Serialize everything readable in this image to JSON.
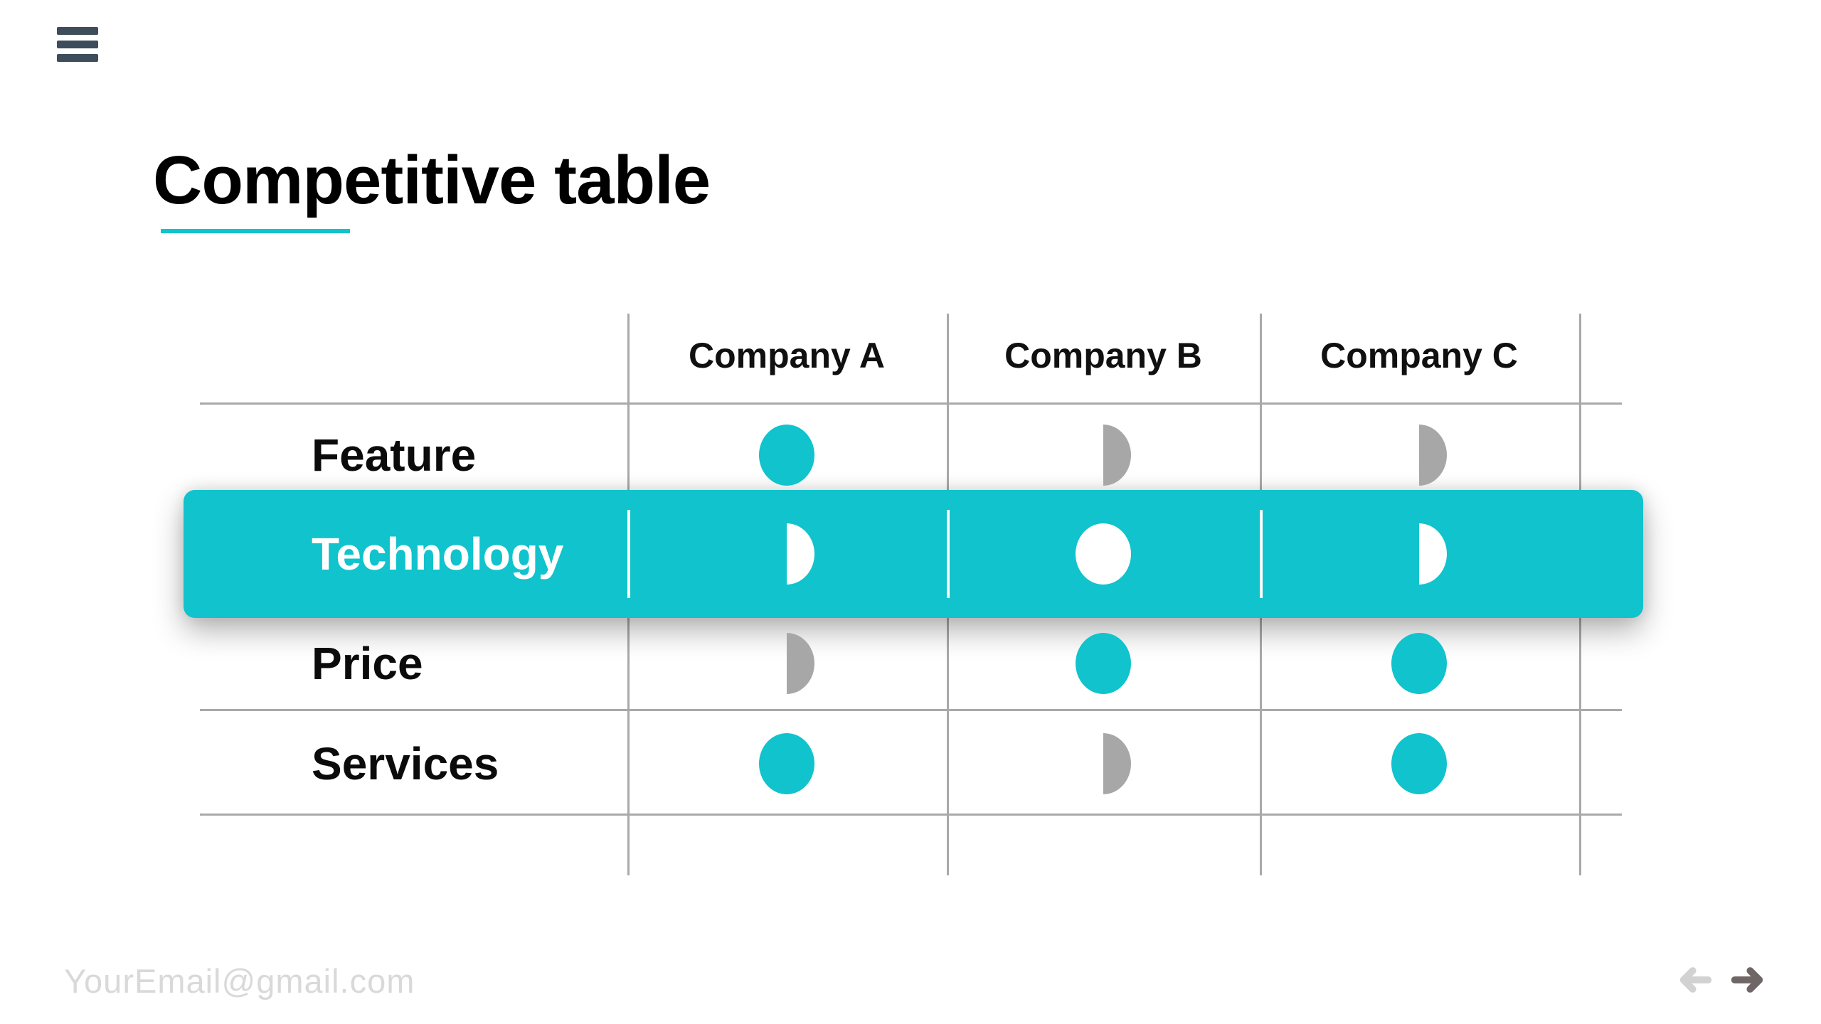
{
  "colors": {
    "accent": "#10c3cc",
    "muted_gray": "#a7a7a7",
    "grid_line": "#a9a9a9",
    "menu_icon": "#3d4d5c",
    "title_text": "#000000",
    "highlight_text": "#ffffff",
    "email_text": "#d9d9d9",
    "prev_arrow": "#d2d2d2",
    "next_arrow": "#6e6765"
  },
  "menu": {
    "icon": "hamburger-menu-icon"
  },
  "title": {
    "text": "Competitive table"
  },
  "table": {
    "columns": [
      "Company A",
      "Company B",
      "Company C"
    ],
    "rows": [
      {
        "label": "Feature",
        "highlighted": false,
        "cells": [
          "full",
          "half",
          "half"
        ]
      },
      {
        "label": "Technology",
        "highlighted": true,
        "cells": [
          "half",
          "full",
          "half"
        ]
      },
      {
        "label": "Price",
        "highlighted": false,
        "cells": [
          "half",
          "full",
          "full"
        ]
      },
      {
        "label": "Services",
        "highlighted": false,
        "cells": [
          "full",
          "half",
          "full"
        ]
      }
    ],
    "cell_legend": {
      "full": "full-circle",
      "half": "half-circle"
    }
  },
  "footer": {
    "email": "YourEmail@gmail.com",
    "prev_icon": "arrow-left-icon",
    "next_icon": "arrow-right-icon"
  }
}
